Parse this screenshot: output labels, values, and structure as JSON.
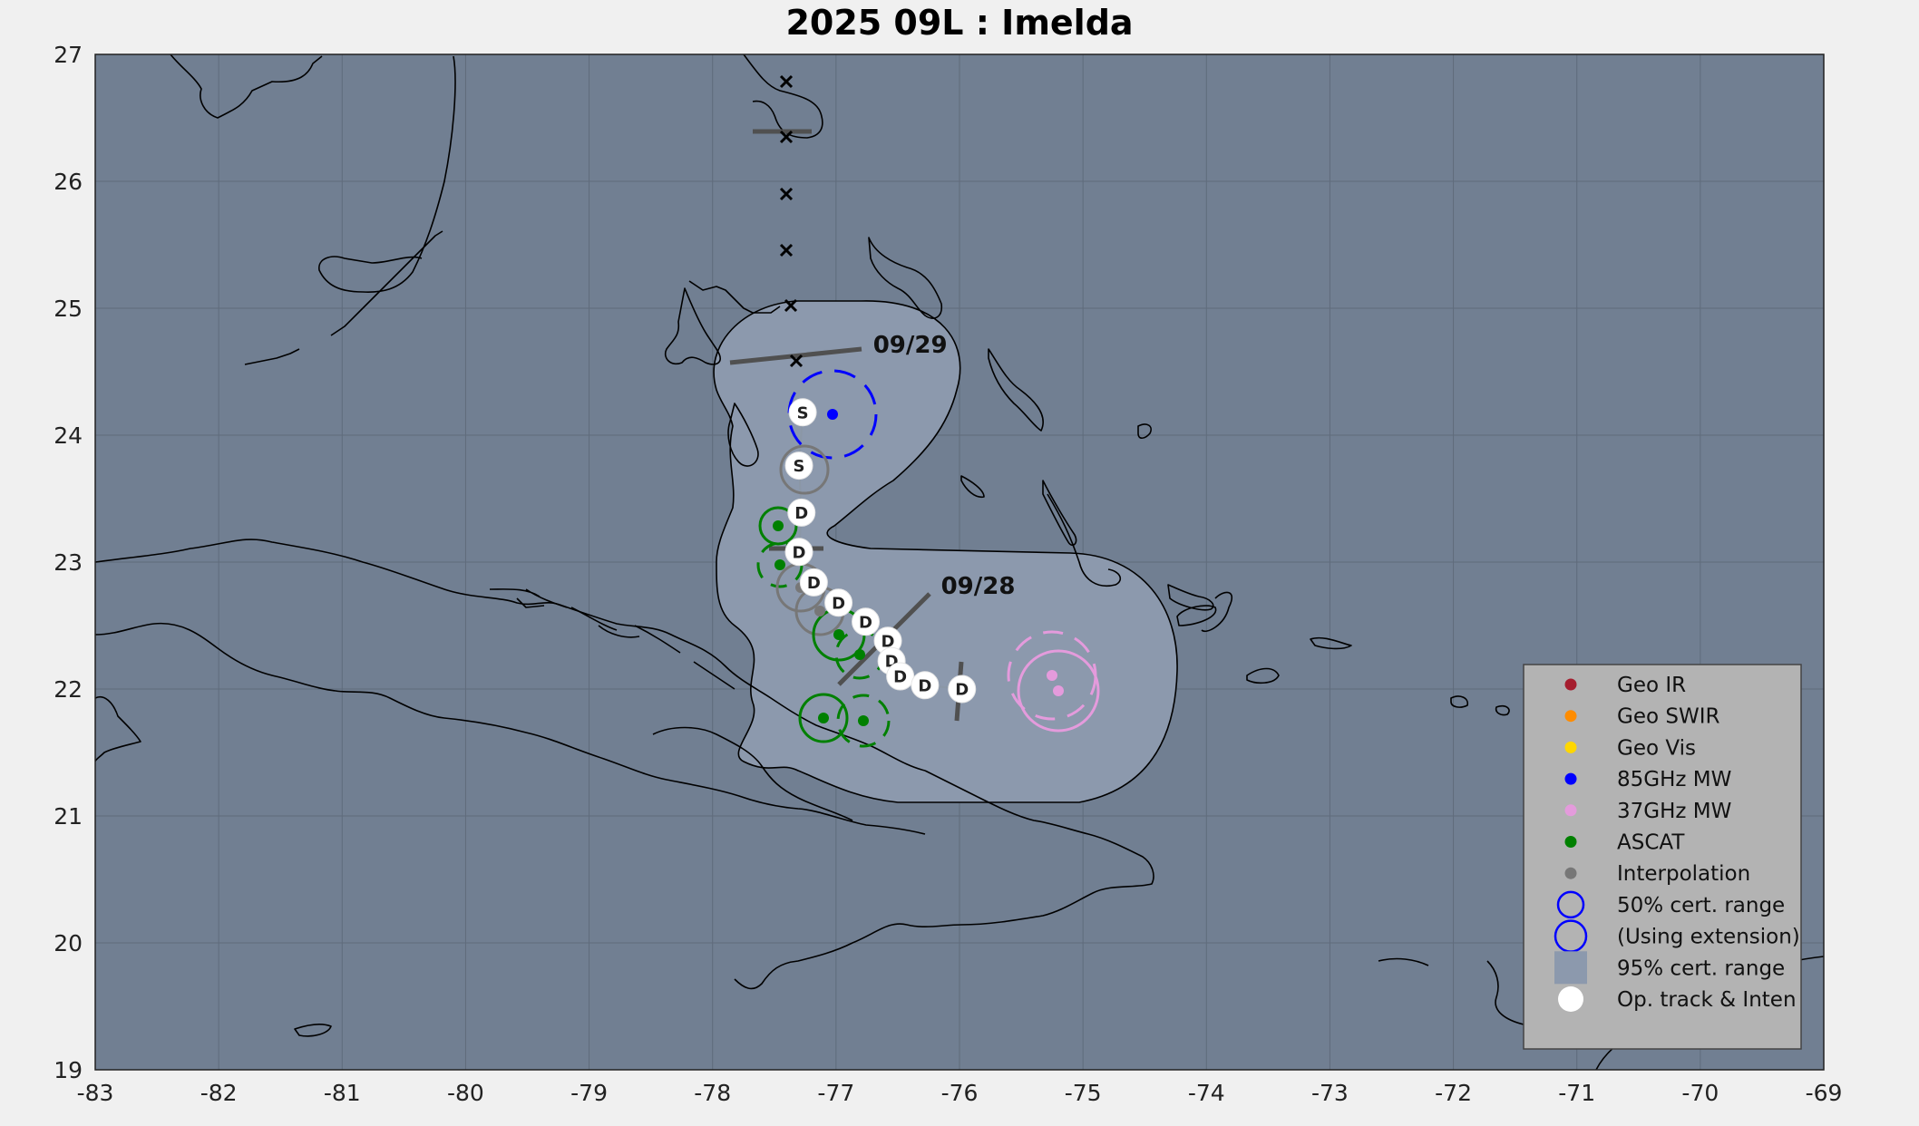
{
  "title": "2025  09L :  Imelda",
  "colors": {
    "ocean": "#717f92",
    "uncertainty_95": "#8c99ad",
    "geo_ir": "#a51d2e",
    "geo_swir": "#ff8c00",
    "geo_vis": "#ffd700",
    "mw85": "#0000ff",
    "mw37": "#e49bdc",
    "ascat": "#008000",
    "interp": "#777777",
    "legend_bg": "#b3b3b3"
  },
  "axes": {
    "x_ticks": [
      "-83",
      "-82",
      "-81",
      "-80",
      "-79",
      "-78",
      "-77",
      "-76",
      "-75",
      "-74",
      "-73",
      "-72",
      "-71",
      "-70",
      "-69"
    ],
    "y_ticks": [
      "27",
      "26",
      "25",
      "24",
      "23",
      "22",
      "21",
      "20",
      "19"
    ],
    "xlim": [
      -83,
      -69
    ],
    "ylim": [
      19,
      27
    ],
    "grid": true
  },
  "day_labels": [
    {
      "text": "09/29",
      "lon": -76.7,
      "lat": 24.65
    },
    {
      "text": "09/28",
      "lon": -76.15,
      "lat": 22.75
    }
  ],
  "op_track": [
    {
      "lon": -77.27,
      "lat": 24.18,
      "label": "S"
    },
    {
      "lon": -77.3,
      "lat": 23.76,
      "label": "S"
    },
    {
      "lon": -77.28,
      "lat": 23.39,
      "label": "D"
    },
    {
      "lon": -77.3,
      "lat": 23.08,
      "label": "D"
    },
    {
      "lon": -77.18,
      "lat": 22.84,
      "label": "D"
    },
    {
      "lon": -76.98,
      "lat": 22.68,
      "label": "D"
    },
    {
      "lon": -76.76,
      "lat": 22.53,
      "label": "D"
    },
    {
      "lon": -76.58,
      "lat": 22.38,
      "label": "D"
    },
    {
      "lon": -76.55,
      "lat": 22.22,
      "label": "D"
    },
    {
      "lon": -76.48,
      "lat": 22.1,
      "label": "D"
    },
    {
      "lon": -76.28,
      "lat": 22.03,
      "label": "D"
    },
    {
      "lon": -75.98,
      "lat": 22.0,
      "label": "D"
    }
  ],
  "legend": [
    {
      "label": "Geo IR",
      "kind": "dot",
      "color_key": "geo_ir"
    },
    {
      "label": "Geo SWIR",
      "kind": "dot",
      "color_key": "geo_swir"
    },
    {
      "label": "Geo Vis",
      "kind": "dot",
      "color_key": "geo_vis"
    },
    {
      "label": "85GHz MW",
      "kind": "dot",
      "color_key": "mw85"
    },
    {
      "label": "37GHz MW",
      "kind": "dot",
      "color_key": "mw37"
    },
    {
      "label": "ASCAT",
      "kind": "dot",
      "color_key": "ascat"
    },
    {
      "label": "Interpolation",
      "kind": "dot",
      "color_key": "interp"
    },
    {
      "label": "50% cert. range",
      "kind": "ring",
      "color_key": "mw85"
    },
    {
      "label": "(Using extension)",
      "kind": "ring-large",
      "color_key": "mw85"
    },
    {
      "label": "95% cert. range",
      "kind": "square",
      "color_key": "uncertainty_95"
    },
    {
      "label": "Op. track & Inten",
      "kind": "white-dot",
      "color_key": ""
    }
  ]
}
